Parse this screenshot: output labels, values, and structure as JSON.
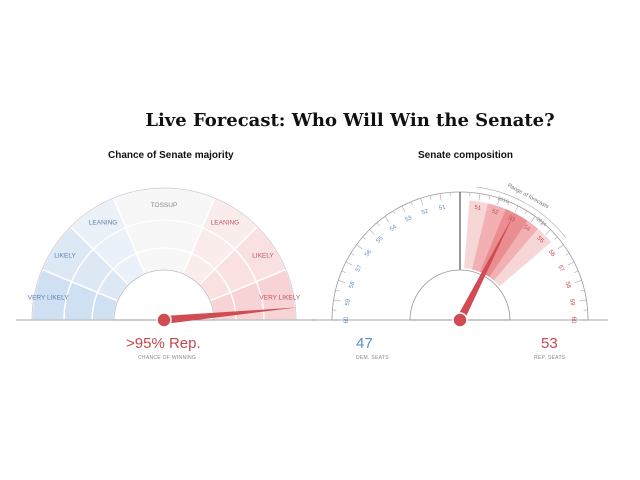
{
  "title": "Live Forecast: Who Will Win the Senate?",
  "majority_panel": {
    "heading": "Chance of Senate majority",
    "zones": [
      {
        "label": "VERY LIKELY",
        "party": "dem",
        "ring": "outer"
      },
      {
        "label": "LIKELY",
        "party": "dem",
        "ring": "middle"
      },
      {
        "label": "LEANING",
        "party": "dem",
        "ring": "inner"
      },
      {
        "label": "TOSSUP",
        "party": "none",
        "ring": "inner"
      },
      {
        "label": "LEANING",
        "party": "rep",
        "ring": "inner"
      },
      {
        "label": "LIKELY",
        "party": "rep",
        "ring": "middle"
      },
      {
        "label": "VERY LIKELY",
        "party": "rep",
        "ring": "outer"
      }
    ],
    "needle_rep_probability": 0.97,
    "result_text": ">95% Rep.",
    "result_caption": "CHANCE OF WINNING"
  },
  "composition_panel": {
    "heading": "Senate composition",
    "ticks_dem": [
      "60",
      "59",
      "58",
      "57",
      "56",
      "55",
      "54",
      "53",
      "52",
      "51"
    ],
    "ticks_rep": [
      "51",
      "52",
      "53",
      "54",
      "55",
      "56",
      "57",
      "58",
      "59",
      "60"
    ],
    "range_label": "Range of forecasts",
    "range_markers": [
      "2016",
      "2014"
    ],
    "needle_rep_seats": 53,
    "dem_seats": "47",
    "dem_caption": "DEM. SEATS",
    "rep_seats": "53",
    "rep_caption": "REP. SEATS"
  },
  "colors": {
    "dem": "#5b8fc7",
    "rep": "#c8474d",
    "needle": "#d14c52",
    "dem_light": "#e6eef8",
    "rep_light": "#f9e3e4"
  }
}
